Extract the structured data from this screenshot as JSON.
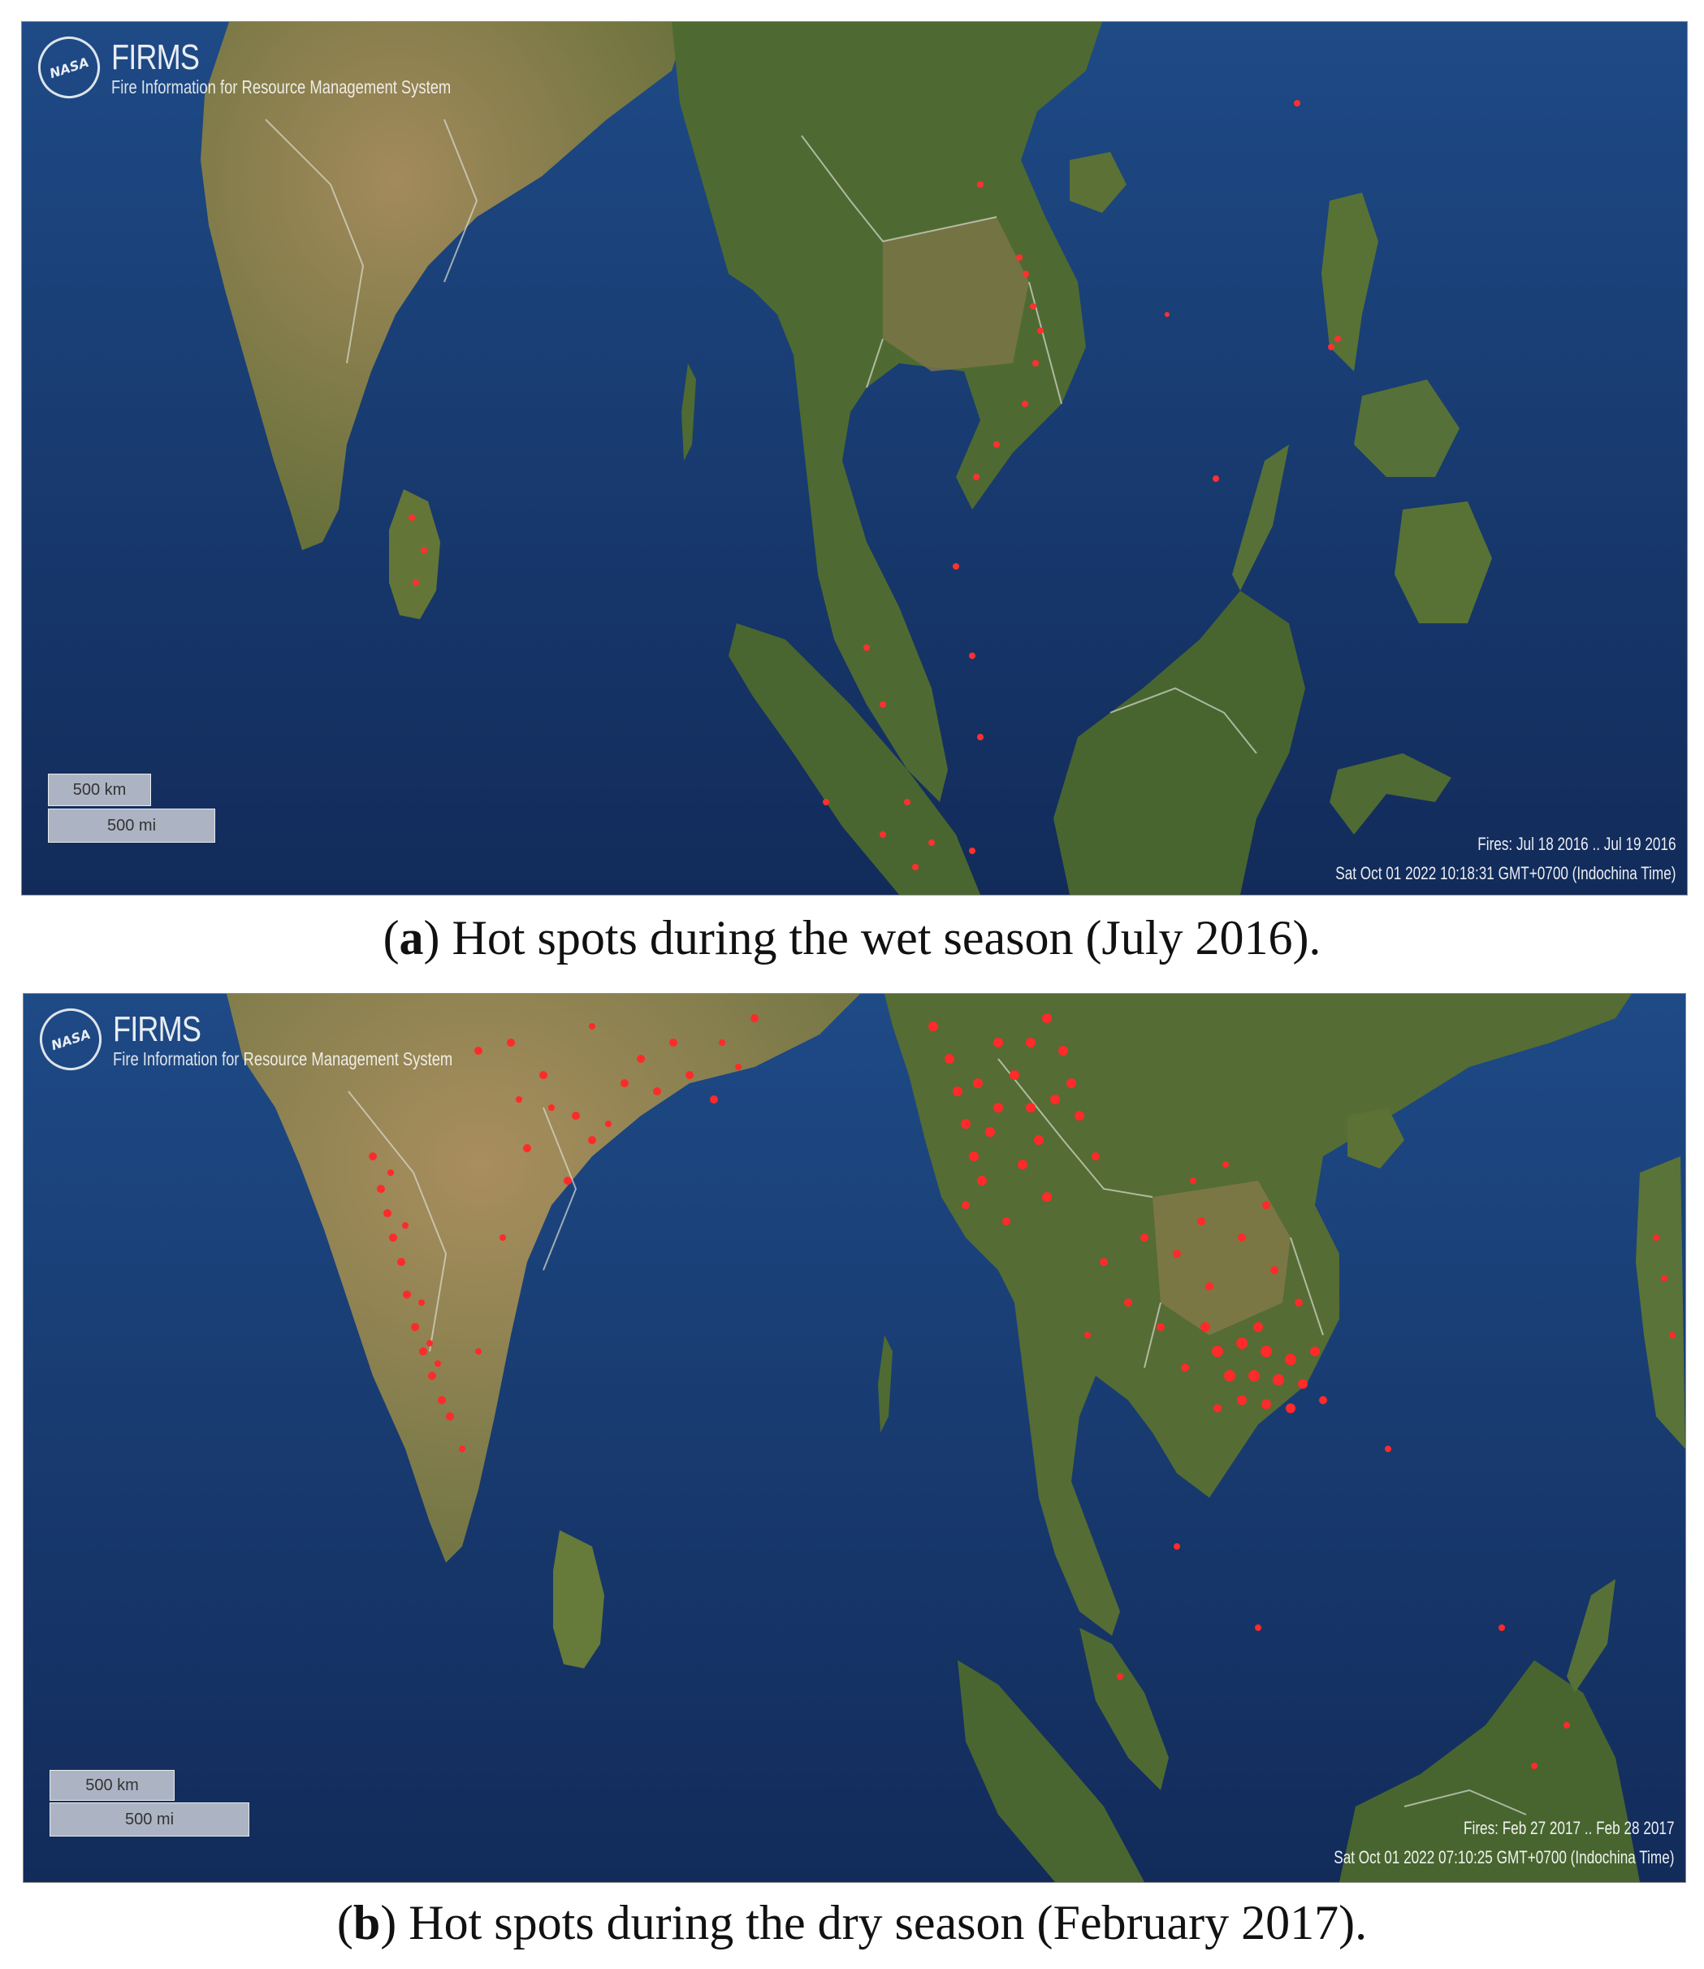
{
  "panels": {
    "a": {
      "brand": {
        "name": "FIRMS",
        "subtitle": "Fire Information for Resource Management System",
        "logo": "NASA"
      },
      "scale": {
        "km": "500 km",
        "mi": "500 mi"
      },
      "fires_range": "Fires: Jul 18 2016 .. Jul 19 2016",
      "timestamp": "Sat Oct 01 2022 10:18:31 GMT+0700 (Indochina Time)",
      "caption": {
        "letter": "a",
        "text": "Hot spots during the wet season (July 2016)."
      }
    },
    "b": {
      "brand": {
        "name": "FIRMS",
        "subtitle": "Fire Information for Resource Management System",
        "logo": "NASA"
      },
      "scale": {
        "km": "500 km",
        "mi": "500 mi"
      },
      "fires_range": "Fires: Feb 27 2017 .. Feb 28 2017",
      "timestamp": "Sat Oct 01 2022 07:10:25 GMT+0700 (Indochina Time)",
      "caption": {
        "letter": "b",
        "text": "Hot spots during the dry season (February 2017)."
      }
    }
  },
  "colors": {
    "ocean": "#1d3f78",
    "land": "#556b34",
    "land_dry": "#8c7a50",
    "fire": "#ff2a2a",
    "border": "#d8dccf"
  }
}
